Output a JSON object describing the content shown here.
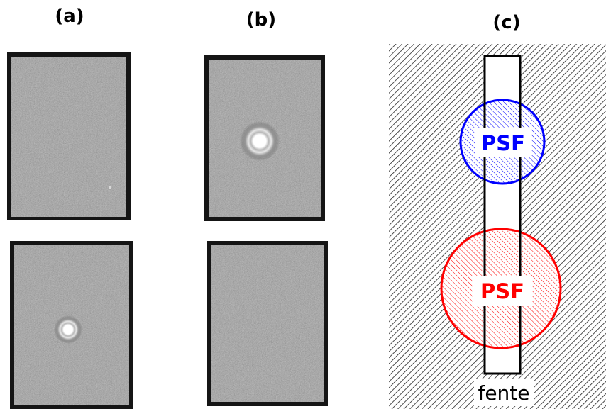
{
  "panels": {
    "a": {
      "label": "(a)"
    },
    "b": {
      "label": "(b)"
    },
    "c": {
      "label": "(c)",
      "psf_top": {
        "text": "PSF",
        "color": "#0000ff"
      },
      "psf_bottom": {
        "text": "PSF",
        "color": "#ff0000"
      },
      "slit_label": "fente"
    }
  },
  "colors": {
    "frame_dark": "#151515",
    "frame_fill": "#5a5a5a",
    "hatch": "#222222",
    "slit_fill": "#ffffff",
    "slit_stroke": "#000000"
  }
}
